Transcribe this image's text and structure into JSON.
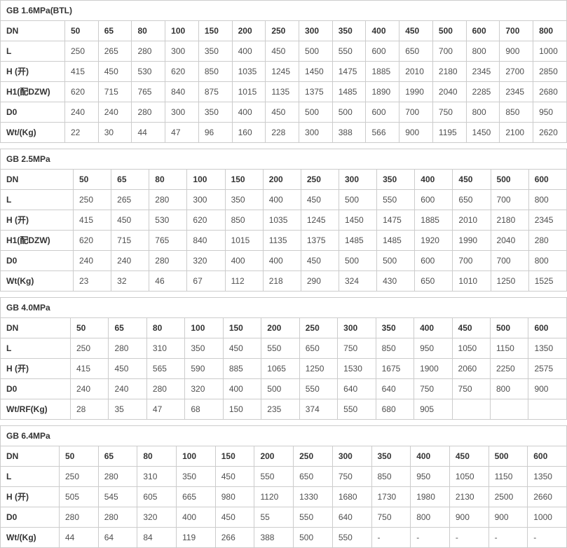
{
  "colors": {
    "border": "#cccccc",
    "label_text": "#333333",
    "value_text": "#4f4f4f",
    "background": "#ffffff"
  },
  "tables": [
    {
      "title": "GB 1.6MPa(BTL)",
      "rows": [
        {
          "label": "DN",
          "values": [
            "50",
            "65",
            "80",
            "100",
            "150",
            "200",
            "250",
            "300",
            "350",
            "400",
            "450",
            "500",
            "600",
            "700",
            "800"
          ]
        },
        {
          "label": "L",
          "values": [
            "250",
            "265",
            "280",
            "300",
            "350",
            "400",
            "450",
            "500",
            "550",
            "600",
            "650",
            "700",
            "800",
            "900",
            "1000"
          ]
        },
        {
          "label": "H (开)",
          "values": [
            "415",
            "450",
            "530",
            "620",
            "850",
            "1035",
            "1245",
            "1450",
            "1475",
            "1885",
            "2010",
            "2180",
            "2345",
            "2700",
            "2850"
          ]
        },
        {
          "label": "H1(配DZW)",
          "values": [
            "620",
            "715",
            "765",
            "840",
            "875",
            "1015",
            "1135",
            "1375",
            "1485",
            "1890",
            "1990",
            "2040",
            "2285",
            "2345",
            "2680"
          ]
        },
        {
          "label": "D0",
          "values": [
            "240",
            "240",
            "280",
            "300",
            "350",
            "400",
            "450",
            "500",
            "500",
            "600",
            "700",
            "750",
            "800",
            "850",
            "950"
          ]
        },
        {
          "label": "Wt/(Kg)",
          "values": [
            "22",
            "30",
            "44",
            "47",
            "96",
            "160",
            "228",
            "300",
            "388",
            "566",
            "900",
            "1195",
            "1450",
            "2100",
            "2620"
          ]
        }
      ]
    },
    {
      "title": "GB 2.5MPa",
      "rows": [
        {
          "label": "DN",
          "values": [
            "50",
            "65",
            "80",
            "100",
            "150",
            "200",
            "250",
            "300",
            "350",
            "400",
            "450",
            "500",
            "600"
          ]
        },
        {
          "label": "L",
          "values": [
            "250",
            "265",
            "280",
            "300",
            "350",
            "400",
            "450",
            "500",
            "550",
            "600",
            "650",
            "700",
            "800"
          ]
        },
        {
          "label": "H (开)",
          "values": [
            "415",
            "450",
            "530",
            "620",
            "850",
            "1035",
            "1245",
            "1450",
            "1475",
            "1885",
            "2010",
            "2180",
            "2345"
          ]
        },
        {
          "label": "H1(配DZW)",
          "values": [
            "620",
            "715",
            "765",
            "840",
            "1015",
            "1135",
            "1375",
            "1485",
            "1485",
            "1920",
            "1990",
            "2040",
            "280"
          ]
        },
        {
          "label": "D0",
          "values": [
            "240",
            "240",
            "280",
            "320",
            "400",
            "400",
            "450",
            "500",
            "500",
            "600",
            "700",
            "700",
            "800"
          ]
        },
        {
          "label": "Wt(Kg)",
          "values": [
            "23",
            "32",
            "46",
            "67",
            "112",
            "218",
            "290",
            "324",
            "430",
            "650",
            "1010",
            "1250",
            "1525"
          ]
        }
      ]
    },
    {
      "title": "GB 4.0MPa",
      "rows": [
        {
          "label": "DN",
          "values": [
            "50",
            "65",
            "80",
            "100",
            "150",
            "200",
            "250",
            "300",
            "350",
            "400",
            "450",
            "500",
            "600"
          ]
        },
        {
          "label": "L",
          "values": [
            "250",
            "280",
            "310",
            "350",
            "450",
            "550",
            "650",
            "750",
            "850",
            "950",
            "1050",
            "1150",
            "1350"
          ]
        },
        {
          "label": "H (开)",
          "values": [
            "415",
            "450",
            "565",
            "590",
            "885",
            "1065",
            "1250",
            "1530",
            "1675",
            "1900",
            "2060",
            "2250",
            "2575"
          ]
        },
        {
          "label": "D0",
          "values": [
            "240",
            "240",
            "280",
            "320",
            "400",
            "500",
            "550",
            "640",
            "640",
            "750",
            "750",
            "800",
            "900"
          ]
        },
        {
          "label": "Wt/RF(Kg)",
          "values": [
            "28",
            "35",
            "47",
            "68",
            "150",
            "235",
            "374",
            "550",
            "680",
            "905",
            "",
            "",
            ""
          ]
        }
      ]
    },
    {
      "title": "GB 6.4MPa",
      "rows": [
        {
          "label": "DN",
          "values": [
            "50",
            "65",
            "80",
            "100",
            "150",
            "200",
            "250",
            "300",
            "350",
            "400",
            "450",
            "500",
            "600"
          ]
        },
        {
          "label": "L",
          "values": [
            "250",
            "280",
            "310",
            "350",
            "450",
            "550",
            "650",
            "750",
            "850",
            "950",
            "1050",
            "1150",
            "1350"
          ]
        },
        {
          "label": "H (开)",
          "values": [
            "505",
            "545",
            "605",
            "665",
            "980",
            "1120",
            "1330",
            "1680",
            "1730",
            "1980",
            "2130",
            "2500",
            "2660"
          ]
        },
        {
          "label": "D0",
          "values": [
            "280",
            "280",
            "320",
            "400",
            "450",
            "55",
            "550",
            "640",
            "750",
            "800",
            "900",
            "900",
            "1000"
          ]
        },
        {
          "label": "Wt/(Kg)",
          "values": [
            "44",
            "64",
            "84",
            "119",
            "266",
            "388",
            "500",
            "550",
            "-",
            "-",
            "-",
            "-",
            "-"
          ]
        }
      ]
    }
  ]
}
